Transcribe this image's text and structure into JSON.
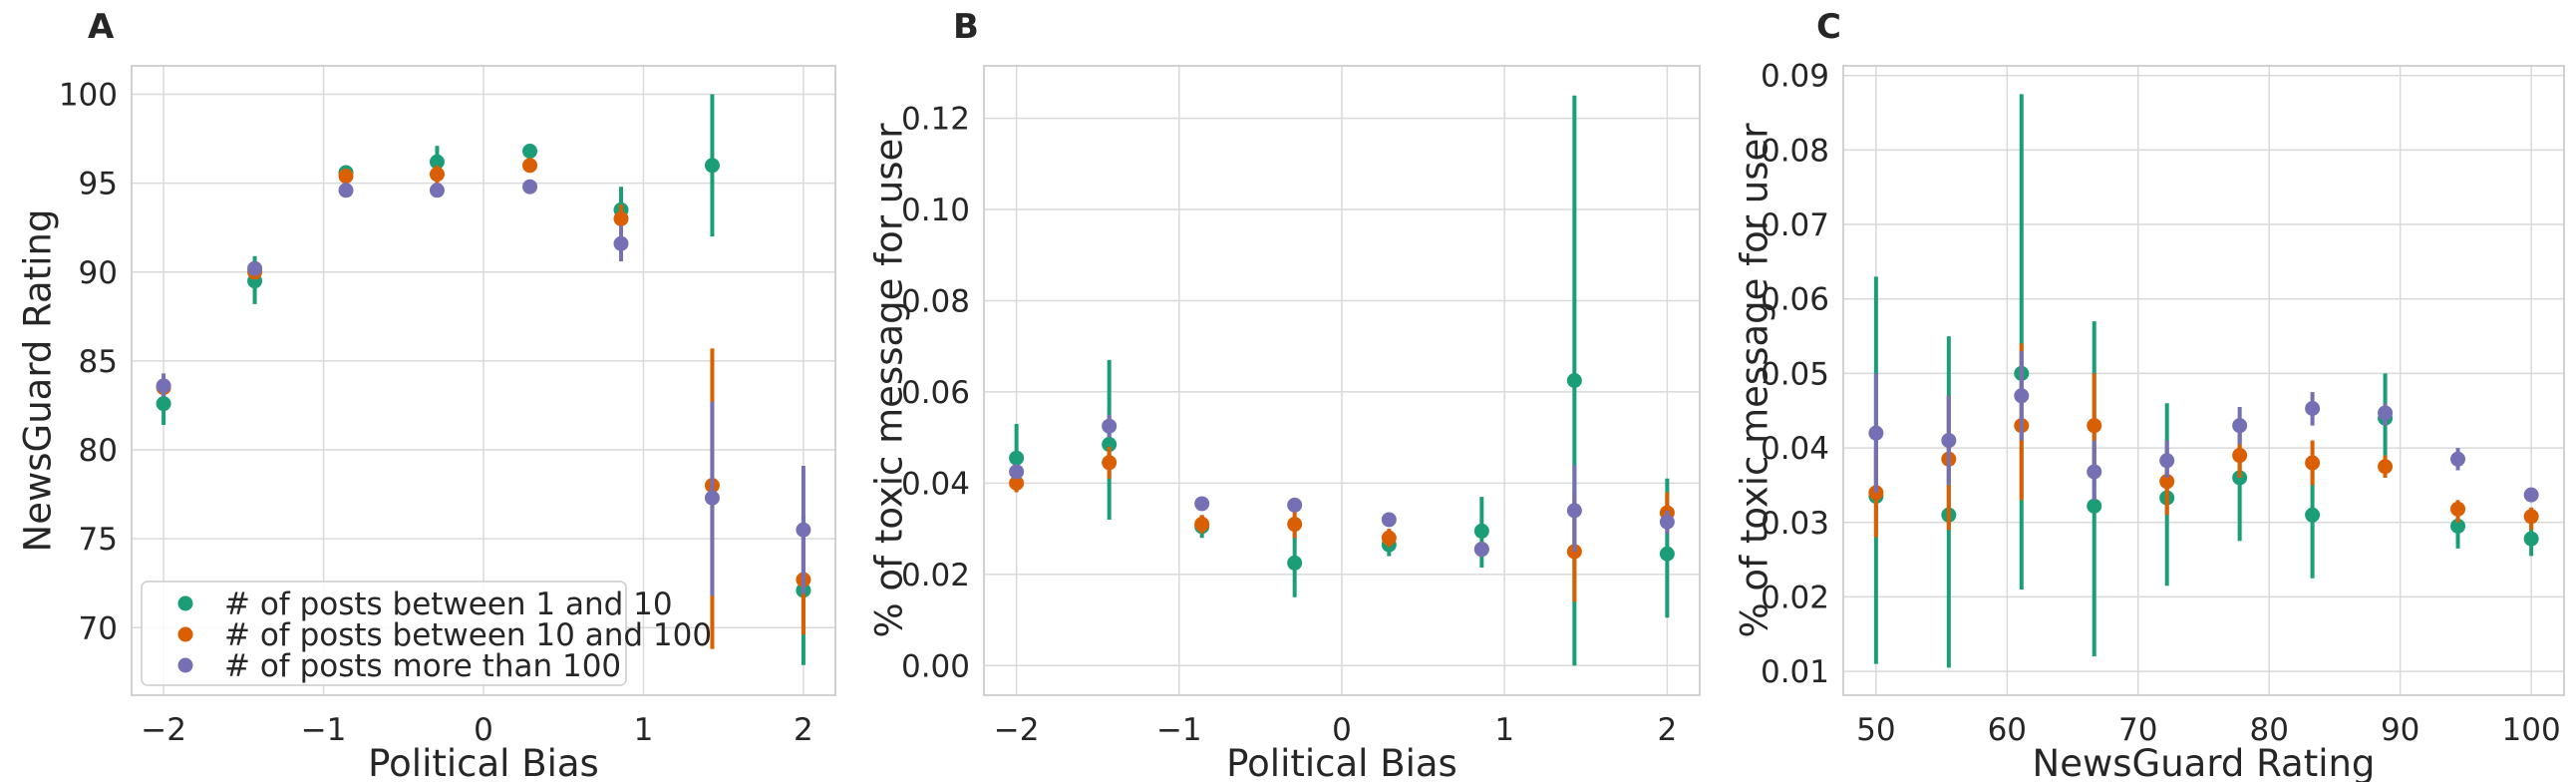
{
  "colors": {
    "series": [
      "#1b9e77",
      "#d95f02",
      "#7570b3"
    ],
    "grid": "#d9d9d9",
    "spine": "#cccccc",
    "text": "#262626"
  },
  "legend": {
    "items": [
      "# of posts between 1 and 10",
      "# of posts between 10 and 100",
      "# of posts more than 100"
    ],
    "placement": "lower-left of panel A"
  },
  "chart_data": [
    {
      "type": "scatter",
      "panel_label": "A",
      "xlabel": "Political Bias",
      "ylabel": "NewsGuard Rating",
      "xlim": [
        -2.2,
        2.2
      ],
      "ylim": [
        66.2,
        101.6
      ],
      "x_ticks": [
        -2,
        -1,
        0,
        1,
        2
      ],
      "x_tick_labels": [
        "−2",
        "−1",
        "0",
        "1",
        "2"
      ],
      "y_ticks": [
        70,
        75,
        80,
        85,
        90,
        95,
        100
      ],
      "y_tick_labels": [
        "70",
        "75",
        "80",
        "85",
        "90",
        "95",
        "100"
      ],
      "grid": true,
      "x": [
        -2.0,
        -1.43,
        -0.86,
        -0.29,
        0.29,
        0.86,
        1.43,
        2.0
      ],
      "series": [
        {
          "name": "# of posts between 1 and 10",
          "y": [
            82.6,
            89.5,
            95.6,
            96.2,
            96.8,
            93.5,
            96.0,
            72.1
          ],
          "err_low": [
            81.4,
            88.2,
            95.2,
            95.4,
            96.5,
            92.2,
            92.0,
            67.9
          ],
          "err_high": [
            83.7,
            90.9,
            95.9,
            97.1,
            97.1,
            94.8,
            100.0,
            76.3
          ]
        },
        {
          "name": "# of posts between 10 and 100",
          "y": [
            83.5,
            90.0,
            95.4,
            95.5,
            96.0,
            93.0,
            78.0,
            72.7
          ],
          "err_low": [
            83.0,
            89.6,
            95.2,
            95.0,
            95.8,
            92.2,
            68.8,
            69.6
          ],
          "err_high": [
            84.0,
            90.4,
            95.6,
            96.0,
            96.2,
            93.8,
            85.7,
            75.8
          ]
        },
        {
          "name": "# of posts more than 100",
          "y": [
            83.6,
            90.2,
            94.6,
            94.6,
            94.8,
            91.6,
            77.3,
            75.5
          ],
          "err_low": [
            83.0,
            89.8,
            94.4,
            94.4,
            94.6,
            90.6,
            71.8,
            71.9
          ],
          "err_high": [
            84.3,
            90.6,
            94.8,
            94.8,
            95.0,
            92.6,
            82.7,
            79.1
          ]
        }
      ]
    },
    {
      "type": "scatter",
      "panel_label": "B",
      "xlabel": "Political Bias",
      "ylabel": "% of toxic message for user",
      "xlim": [
        -2.2,
        2.2
      ],
      "ylim": [
        -0.0065,
        0.1315
      ],
      "x_ticks": [
        -2,
        -1,
        0,
        1,
        2
      ],
      "x_tick_labels": [
        "−2",
        "−1",
        "0",
        "1",
        "2"
      ],
      "y_ticks": [
        0.0,
        0.02,
        0.04,
        0.06,
        0.08,
        0.1,
        0.12
      ],
      "y_tick_labels": [
        "0.00",
        "0.02",
        "0.04",
        "0.06",
        "0.08",
        "0.10",
        "0.12"
      ],
      "grid": true,
      "x": [
        -2.0,
        -1.43,
        -0.86,
        -0.29,
        0.29,
        0.86,
        1.43,
        2.0
      ],
      "series": [
        {
          "name": "# of posts between 1 and 10",
          "y": [
            0.0455,
            0.0485,
            0.0305,
            0.0225,
            0.0265,
            0.0295,
            0.0625,
            0.0245
          ],
          "err_low": [
            0.039,
            0.032,
            0.028,
            0.015,
            0.024,
            0.0215,
            0.0,
            0.0105
          ],
          "err_high": [
            0.053,
            0.067,
            0.033,
            0.031,
            0.029,
            0.037,
            0.125,
            0.041
          ]
        },
        {
          "name": "# of posts between 10 and 100",
          "y": [
            0.04,
            0.0445,
            0.031,
            0.031,
            0.028,
            0.0255,
            0.025,
            0.0335
          ],
          "err_low": [
            0.038,
            0.041,
            0.029,
            0.028,
            0.026,
            0.024,
            0.014,
            0.029
          ],
          "err_high": [
            0.042,
            0.048,
            0.033,
            0.034,
            0.03,
            0.027,
            0.038,
            0.038
          ]
        },
        {
          "name": "# of posts more than 100",
          "y": [
            0.0425,
            0.0525,
            0.0355,
            0.0352,
            0.032,
            0.0255,
            0.034,
            0.0315
          ],
          "err_low": [
            0.041,
            0.05,
            0.035,
            0.034,
            0.031,
            0.024,
            0.025,
            0.029
          ],
          "err_high": [
            0.044,
            0.055,
            0.036,
            0.036,
            0.033,
            0.027,
            0.044,
            0.034
          ]
        }
      ]
    },
    {
      "type": "scatter",
      "panel_label": "C",
      "xlabel": "NewsGuard Rating",
      "ylabel": "% of toxic message for user",
      "xlim": [
        47.5,
        102.5
      ],
      "ylim": [
        0.0068,
        0.0913
      ],
      "x_ticks": [
        50,
        60,
        70,
        80,
        90,
        100
      ],
      "x_tick_labels": [
        "50",
        "60",
        "70",
        "80",
        "90",
        "100"
      ],
      "y_ticks": [
        0.01,
        0.02,
        0.03,
        0.04,
        0.05,
        0.06,
        0.07,
        0.08,
        0.09
      ],
      "y_tick_labels": [
        "0.01",
        "0.02",
        "0.03",
        "0.04",
        "0.05",
        "0.06",
        "0.07",
        "0.08",
        "0.09"
      ],
      "grid": true,
      "x": [
        50.0,
        55.55,
        61.1,
        66.65,
        72.2,
        77.75,
        83.3,
        88.85,
        94.4,
        100.0
      ],
      "series": [
        {
          "name": "# of posts between 1 and 10",
          "y": [
            0.0335,
            0.031,
            0.05,
            0.0322,
            0.0333,
            0.036,
            0.031,
            0.044,
            0.0295,
            0.0278
          ],
          "err_low": [
            0.011,
            0.0105,
            0.021,
            0.012,
            0.0215,
            0.0275,
            0.0225,
            0.0385,
            0.0265,
            0.0255
          ],
          "err_high": [
            0.063,
            0.055,
            0.0875,
            0.057,
            0.046,
            0.044,
            0.038,
            0.05,
            0.032,
            0.03
          ]
        },
        {
          "name": "# of posts between 10 and 100",
          "y": [
            0.034,
            0.0385,
            0.043,
            0.043,
            0.0355,
            0.039,
            0.038,
            0.0375,
            0.0318,
            0.0308
          ],
          "err_low": [
            0.028,
            0.029,
            0.033,
            0.036,
            0.031,
            0.036,
            0.035,
            0.036,
            0.03,
            0.029
          ],
          "err_high": [
            0.04,
            0.047,
            0.054,
            0.05,
            0.04,
            0.042,
            0.041,
            0.039,
            0.033,
            0.032
          ]
        },
        {
          "name": "# of posts more than 100",
          "y": [
            0.042,
            0.041,
            0.047,
            0.0368,
            0.0383,
            0.043,
            0.0453,
            0.0447,
            0.0385,
            0.0337
          ],
          "err_low": [
            0.034,
            0.035,
            0.041,
            0.033,
            0.036,
            0.0405,
            0.043,
            0.043,
            0.037,
            0.033
          ],
          "err_high": [
            0.05,
            0.047,
            0.053,
            0.041,
            0.041,
            0.0455,
            0.0475,
            0.046,
            0.04,
            0.034
          ]
        }
      ]
    }
  ]
}
